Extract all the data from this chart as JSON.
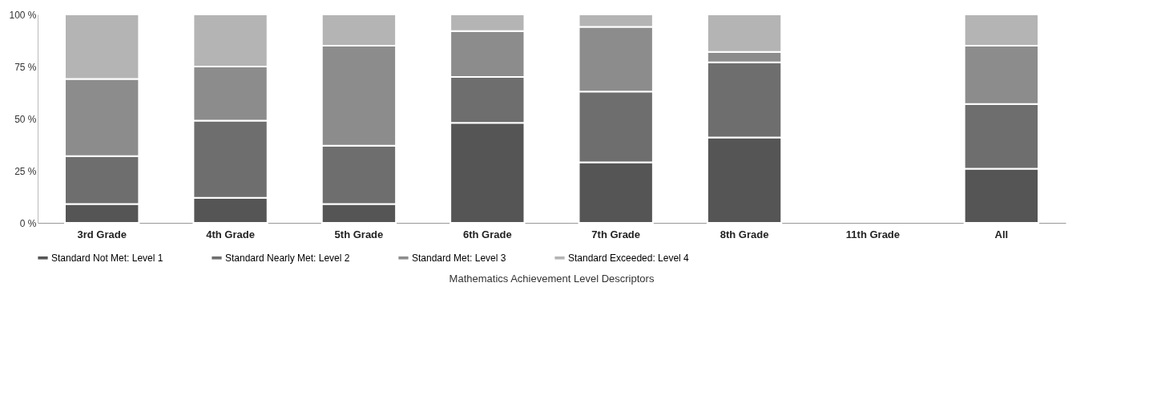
{
  "chart_data": {
    "type": "bar",
    "stacked": true,
    "categories": [
      "3rd Grade",
      "4th Grade",
      "5th Grade",
      "6th Grade",
      "7th Grade",
      "8th Grade",
      "11th Grade",
      "All"
    ],
    "series": [
      {
        "name": "Standard Not Met: Level 1",
        "color": "#555555",
        "values": [
          9,
          12,
          9,
          48,
          29,
          41,
          null,
          26
        ]
      },
      {
        "name": "Standard Nearly Met: Level 2",
        "color": "#6e6e6e",
        "values": [
          23,
          37,
          28,
          22,
          34,
          36,
          null,
          31
        ]
      },
      {
        "name": "Standard Met: Level 3",
        "color": "#8c8c8c",
        "values": [
          37,
          26,
          48,
          22,
          31,
          5,
          null,
          28
        ]
      },
      {
        "name": "Standard Exceeded: Level 4",
        "color": "#b4b4b4",
        "values": [
          31,
          25,
          15,
          8,
          6,
          18,
          null,
          15
        ]
      }
    ],
    "ylim": [
      0,
      100
    ],
    "yticks": [
      {
        "value": 0,
        "label": "0 %"
      },
      {
        "value": 25,
        "label": "25 %"
      },
      {
        "value": 50,
        "label": "50 %"
      },
      {
        "value": 75,
        "label": "75 %"
      },
      {
        "value": 100,
        "label": "100 %"
      }
    ],
    "grid": false,
    "legend": "bottom",
    "annotations": [
      "Mathematics Achievement Level Descriptors"
    ]
  }
}
